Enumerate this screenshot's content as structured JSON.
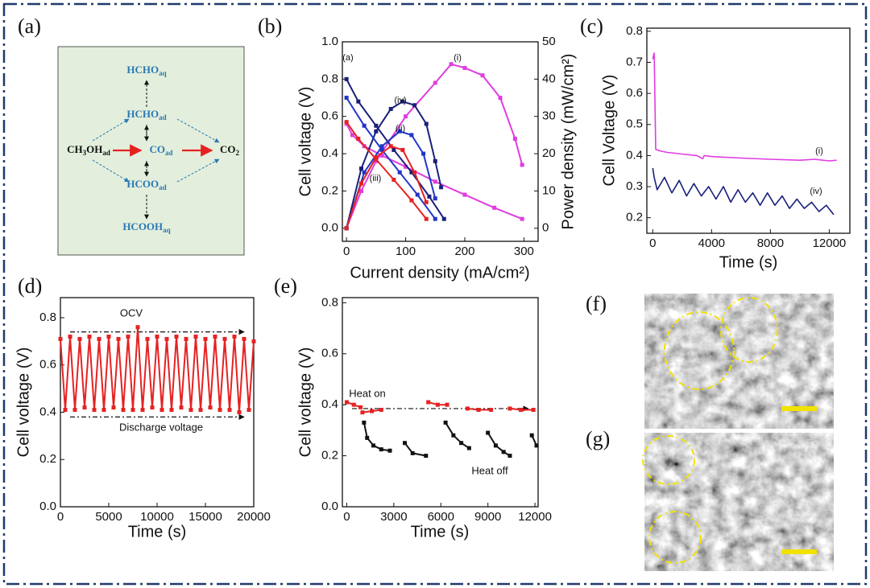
{
  "diagram": {
    "panel": "(a)",
    "nodes": [
      {
        "parts": [
          "HCHO",
          "aq"
        ],
        "color": "#2a78b5"
      },
      {
        "parts": [
          "HCHO",
          "ad"
        ],
        "color": "#2a78b5"
      },
      {
        "parts": [
          "CH",
          "3",
          "OH",
          "ad"
        ],
        "color": "#111111"
      },
      {
        "parts": [
          "CO",
          "ad"
        ],
        "color": "#2a78b5"
      },
      {
        "parts": [
          "CO",
          "2"
        ],
        "color": "#111111"
      },
      {
        "parts": [
          "HCOO",
          "ad"
        ],
        "color": "#2a78b5"
      },
      {
        "parts": [
          "HCOOH",
          "aq"
        ],
        "color": "#2a78b5"
      }
    ]
  },
  "images": [
    {
      "panel": "(f)"
    },
    {
      "panel": "(g)"
    }
  ],
  "chart_data": [
    {
      "type": "line",
      "panel": "(b)",
      "markers": true,
      "xlabel": "Current density (mA/cm²)",
      "ylabel": "Cell voltage (V)",
      "y2label": "Power density (mW/cm²)",
      "xlim": [
        -7,
        324
      ],
      "xticks": [
        0,
        100,
        200,
        300
      ],
      "ylim": [
        -0.07,
        1.0
      ],
      "yticks": [
        {
          "value": 0,
          "label": "0.0"
        },
        0.2,
        0.4,
        0.6,
        0.8,
        {
          "value": 1,
          "label": "1.0"
        }
      ],
      "y2lim": [
        -3.5,
        50
      ],
      "y2ticks": [
        0,
        10,
        20,
        30,
        40,
        50
      ],
      "annotations": [
        {
          "text": "(a)",
          "color": "#111111"
        },
        {
          "text": "(i)",
          "color": "#111111"
        },
        {
          "text": "(iv)",
          "color": "#111111"
        },
        {
          "text": "(ii)",
          "color": "#111111"
        },
        {
          "text": "(iii)",
          "color": "#111111"
        }
      ],
      "series": [
        {
          "color": "#e03ce0",
          "x": [
            0,
            10,
            30,
            60,
            100,
            150,
            200,
            250,
            297
          ],
          "values": [
            0.56,
            0.5,
            0.44,
            0.39,
            0.33,
            0.25,
            0.18,
            0.11,
            0.05
          ]
        },
        {
          "color": "#e03ce0",
          "axis": "y2",
          "x": [
            0,
            25,
            50,
            100,
            150,
            177,
            200,
            230,
            260,
            285,
            297
          ],
          "values": [
            0,
            10,
            18,
            30,
            39,
            44,
            43,
            41,
            35,
            24,
            17
          ]
        },
        {
          "color": "#1a1f7a",
          "x": [
            0,
            20,
            50,
            80,
            110,
            140,
            165
          ],
          "values": [
            0.8,
            0.68,
            0.55,
            0.42,
            0.3,
            0.17,
            0.05
          ]
        },
        {
          "color": "#1a1f7a",
          "axis": "y2",
          "x": [
            0,
            25,
            50,
            75,
            95,
            115,
            135,
            150,
            160
          ],
          "values": [
            0,
            16,
            26,
            32,
            34,
            33,
            28,
            18,
            11
          ]
        },
        {
          "color": "#2236c8",
          "x": [
            0,
            30,
            60,
            90,
            120,
            150
          ],
          "values": [
            0.7,
            0.55,
            0.42,
            0.3,
            0.18,
            0.05
          ]
        },
        {
          "color": "#2236c8",
          "axis": "y2",
          "x": [
            0,
            30,
            60,
            90,
            110,
            130,
            150
          ],
          "values": [
            0,
            15,
            22,
            26,
            25,
            20,
            8
          ]
        },
        {
          "color": "#e52222",
          "x": [
            0,
            20,
            50,
            80,
            110,
            135
          ],
          "values": [
            0.57,
            0.48,
            0.37,
            0.26,
            0.15,
            0.05
          ]
        },
        {
          "color": "#e52222",
          "axis": "y2",
          "x": [
            0,
            25,
            50,
            75,
            95,
            115,
            135
          ],
          "values": [
            0,
            12,
            19,
            22,
            21,
            15,
            7
          ]
        }
      ]
    },
    {
      "type": "line",
      "panel": "(c)",
      "markers": false,
      "xlabel": "Time (s)",
      "ylabel": "Cell Voltage (V)",
      "xlim": [
        -400,
        13400
      ],
      "xticks": [
        0,
        4000,
        8000,
        12000
      ],
      "ylim": [
        0.15,
        0.81
      ],
      "yticks": [
        0.2,
        0.3,
        0.4,
        0.5,
        0.6,
        0.7,
        0.8
      ],
      "annotations": [
        {
          "text": "(i)",
          "color": "#111111"
        },
        {
          "text": "(iv)",
          "color": "#111111"
        }
      ],
      "series": [
        {
          "color": "#e03ce0",
          "x": [
            0,
            100,
            200,
            500,
            1000,
            2000,
            3000,
            3400,
            3500,
            4000,
            6000,
            8000,
            10000,
            11000,
            12000,
            12500
          ],
          "values": [
            0.71,
            0.73,
            0.42,
            0.415,
            0.41,
            0.405,
            0.4,
            0.39,
            0.4,
            0.397,
            0.392,
            0.388,
            0.385,
            0.388,
            0.383,
            0.385
          ]
        },
        {
          "color": "#1a1f7a",
          "x": [
            0,
            100,
            300,
            800,
            1300,
            1800,
            2300,
            2800,
            3300,
            3800,
            4300,
            4800,
            5300,
            5800,
            6300,
            6800,
            7300,
            7800,
            8300,
            8800,
            9300,
            9800,
            10300,
            10800,
            11300,
            11800,
            12300
          ],
          "values": [
            0.36,
            0.33,
            0.29,
            0.33,
            0.28,
            0.32,
            0.27,
            0.31,
            0.27,
            0.3,
            0.26,
            0.3,
            0.25,
            0.29,
            0.25,
            0.28,
            0.24,
            0.28,
            0.24,
            0.27,
            0.23,
            0.26,
            0.23,
            0.25,
            0.22,
            0.24,
            0.21
          ]
        }
      ]
    },
    {
      "type": "line",
      "panel": "(d)",
      "markers": true,
      "xlabel": "Time (s)",
      "ylabel": "Cell voltage (V)",
      "xlim": [
        0,
        20000
      ],
      "xticks": [
        0,
        5000,
        10000,
        15000,
        20000
      ],
      "ylim": [
        0,
        0.885
      ],
      "yticks": [
        {
          "value": 0,
          "label": "0.0"
        },
        0.2,
        0.4,
        0.6,
        0.8
      ],
      "annotations": [
        {
          "text": "OCV",
          "color": "#111111"
        },
        {
          "text": "Discharge voltage",
          "color": "#111111"
        }
      ],
      "reference_lines": [
        0.74,
        0.38
      ],
      "series": [
        {
          "color": "#e52222",
          "x": [
            0,
            500,
            1000,
            1500,
            2000,
            2500,
            3000,
            3500,
            4000,
            4500,
            5000,
            5500,
            6000,
            6500,
            7000,
            7500,
            8000,
            8500,
            9000,
            9500,
            10000,
            10500,
            11000,
            11500,
            12000,
            12500,
            13000,
            13500,
            14000,
            14500,
            15000,
            15500,
            16000,
            16500,
            17000,
            17500,
            18000,
            18500,
            19000,
            19500,
            20000
          ],
          "values": [
            0.71,
            0.41,
            0.72,
            0.41,
            0.71,
            0.42,
            0.72,
            0.41,
            0.71,
            0.41,
            0.72,
            0.42,
            0.71,
            0.41,
            0.72,
            0.41,
            0.76,
            0.41,
            0.71,
            0.42,
            0.72,
            0.41,
            0.71,
            0.41,
            0.72,
            0.42,
            0.71,
            0.41,
            0.72,
            0.41,
            0.71,
            0.42,
            0.72,
            0.41,
            0.71,
            0.41,
            0.72,
            0.4,
            0.71,
            0.41,
            0.7
          ]
        }
      ]
    },
    {
      "type": "line",
      "panel": "(e)",
      "markers": true,
      "xlabel": "Time (s)",
      "ylabel": "Cell voltage (V)",
      "xlim": [
        -280,
        12200
      ],
      "xticks": [
        0,
        3000,
        6000,
        9000,
        12000
      ],
      "ylim": [
        0,
        0.82
      ],
      "yticks": [
        {
          "value": 0,
          "label": "0.0"
        },
        0.2,
        0.4,
        0.6,
        0.8
      ],
      "annotations": [
        {
          "text": "Heat on",
          "color": "#b030c8"
        },
        {
          "text": "Heat off",
          "color": "#1a9090"
        }
      ],
      "reference_lines": [
        0.385
      ],
      "series": [
        {
          "color": "#e52222",
          "x": [
            0,
            450,
            880,
            900,
            1000,
            1600,
            2200,
            2300,
            5200,
            5800,
            6400,
            6500,
            7700,
            8400,
            9200,
            9300,
            10400,
            11100,
            11900
          ],
          "values": [
            0.41,
            0.4,
            0.39,
            null,
            0.37,
            0.375,
            0.38,
            null,
            0.41,
            0.4,
            0.4,
            null,
            0.385,
            0.38,
            0.38,
            null,
            0.385,
            0.38,
            0.38
          ]
        },
        {
          "color": "#111111",
          "x": [
            1100,
            1300,
            1700,
            2200,
            2750,
            2800,
            3700,
            4200,
            5050,
            5100,
            6300,
            6800,
            7300,
            7800,
            7900,
            9000,
            9500,
            10000,
            10400,
            10500,
            11800,
            12100
          ],
          "values": [
            0.33,
            0.27,
            0.24,
            0.225,
            0.22,
            null,
            0.25,
            0.21,
            0.2,
            null,
            0.33,
            0.28,
            0.25,
            0.23,
            null,
            0.29,
            0.24,
            0.215,
            0.2,
            null,
            0.28,
            0.24
          ]
        }
      ]
    }
  ]
}
